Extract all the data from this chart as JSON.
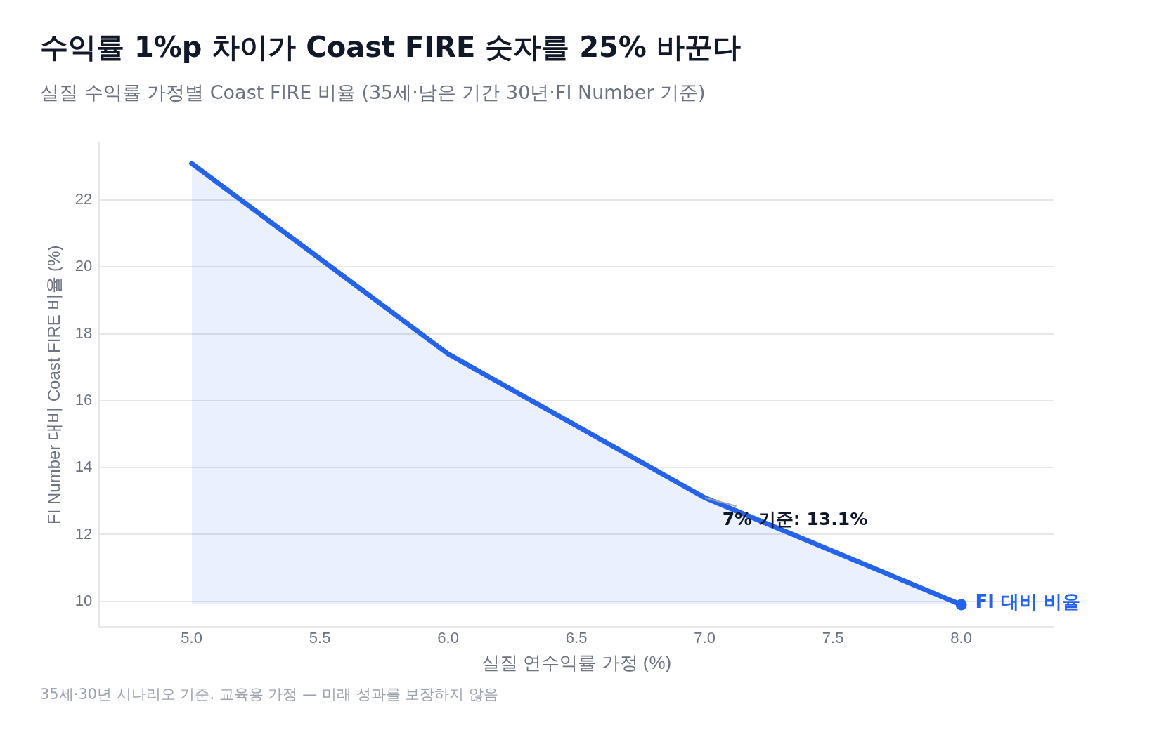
{
  "chart_data": {
    "type": "area",
    "title": "수익률 1%p 차이가 Coast FIRE 숫자를 25% 바꾼다",
    "subtitle": "실질 수익률 가정별 Coast FIRE 비율 (35세·남은 기간 30년·FI Number 기준)",
    "xlabel": "실질 연수익률 가정 (%)",
    "ylabel": "FI Number 대비 Coast FIRE 비율 (%)",
    "x": [
      5,
      6,
      7,
      8
    ],
    "series": [
      {
        "name": "FI 대비 비율",
        "color": "#2563eb",
        "values": [
          23.1,
          17.4,
          13.1,
          9.9
        ]
      }
    ],
    "xlim": [
      4.64,
      8.36
    ],
    "xticks": [
      {
        "value": 5,
        "label": "5.0"
      },
      {
        "value": 5.5,
        "label": "5.5"
      },
      {
        "value": 6,
        "label": "6.0"
      },
      {
        "value": 6.5,
        "label": "6.5"
      },
      {
        "value": 7,
        "label": "7.0"
      },
      {
        "value": 7.5,
        "label": "7.5"
      },
      {
        "value": 8,
        "label": "8.0"
      }
    ],
    "ylim": [
      9.23,
      23.72
    ],
    "yticks": [
      10,
      12,
      14,
      16,
      18,
      20,
      22
    ],
    "grid": "y",
    "legend": false,
    "annotations": [
      {
        "text": "7% 기준: 13.1%",
        "x": 7,
        "y": 13.1
      },
      "35세·30년 시나리오 기준. 교육용 가정 — 미래 성과를 보장하지 않음"
    ]
  }
}
